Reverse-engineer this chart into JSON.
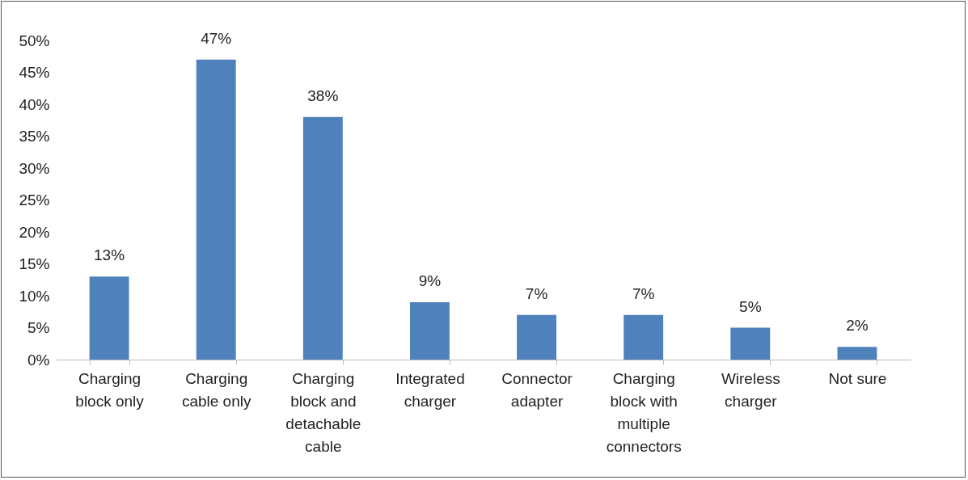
{
  "chart_data": {
    "type": "bar",
    "categories": [
      "Charging block only",
      "Charging cable only",
      "Charging block and detachable cable",
      "Integrated charger",
      "Connector adapter",
      "Charging block with multiple connectors",
      "Wireless charger",
      "Not sure"
    ],
    "values": [
      13,
      47,
      38,
      9,
      7,
      7,
      5,
      2
    ],
    "color": "#4f81bd",
    "value_labels": [
      "13%",
      "47%",
      "38%",
      "9%",
      "7%",
      "7%",
      "5%",
      "2%"
    ],
    "ylim": [
      0,
      50
    ],
    "yticks": [
      {
        "value": 0,
        "label": "0%"
      },
      {
        "value": 5,
        "label": "5%"
      },
      {
        "value": 10,
        "label": "10%"
      },
      {
        "value": 15,
        "label": "15%"
      },
      {
        "value": 20,
        "label": "20%"
      },
      {
        "value": 25,
        "label": "25%"
      },
      {
        "value": 30,
        "label": "30%"
      },
      {
        "value": 35,
        "label": "35%"
      },
      {
        "value": 40,
        "label": "40%"
      },
      {
        "value": 45,
        "label": "45%"
      },
      {
        "value": 50,
        "label": "50%"
      }
    ],
    "grid": false,
    "legend": false
  }
}
